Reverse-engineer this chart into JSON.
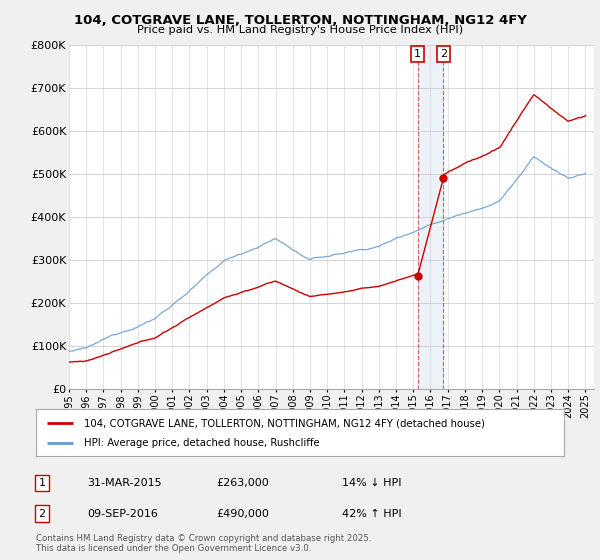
{
  "title": "104, COTGRAVE LANE, TOLLERTON, NOTTINGHAM, NG12 4FY",
  "subtitle": "Price paid vs. HM Land Registry's House Price Index (HPI)",
  "legend_label1": "104, COTGRAVE LANE, TOLLERTON, NOTTINGHAM, NG12 4FY (detached house)",
  "legend_label2": "HPI: Average price, detached house, Rushcliffe",
  "transaction1_date": "31-MAR-2015",
  "transaction1_price": "£263,000",
  "transaction1_hpi": "14% ↓ HPI",
  "transaction2_date": "09-SEP-2016",
  "transaction2_price": "£490,000",
  "transaction2_hpi": "42% ↑ HPI",
  "footer": "Contains HM Land Registry data © Crown copyright and database right 2025.\nThis data is licensed under the Open Government Licence v3.0.",
  "line1_color": "#cc0000",
  "line2_color": "#6699cc",
  "background_color": "#f0f0f0",
  "plot_bg_color": "#ffffff",
  "grid_color": "#cccccc",
  "ylim": [
    0,
    800000
  ],
  "yticks": [
    0,
    100000,
    200000,
    300000,
    400000,
    500000,
    600000,
    700000,
    800000
  ],
  "ytick_labels": [
    "£0",
    "£100K",
    "£200K",
    "£300K",
    "£400K",
    "£500K",
    "£600K",
    "£700K",
    "£800K"
  ],
  "t1_year": 2015.25,
  "t2_year": 2016.75,
  "t1_price": 263000,
  "t2_price": 490000,
  "xmin": 1995,
  "xmax": 2026
}
